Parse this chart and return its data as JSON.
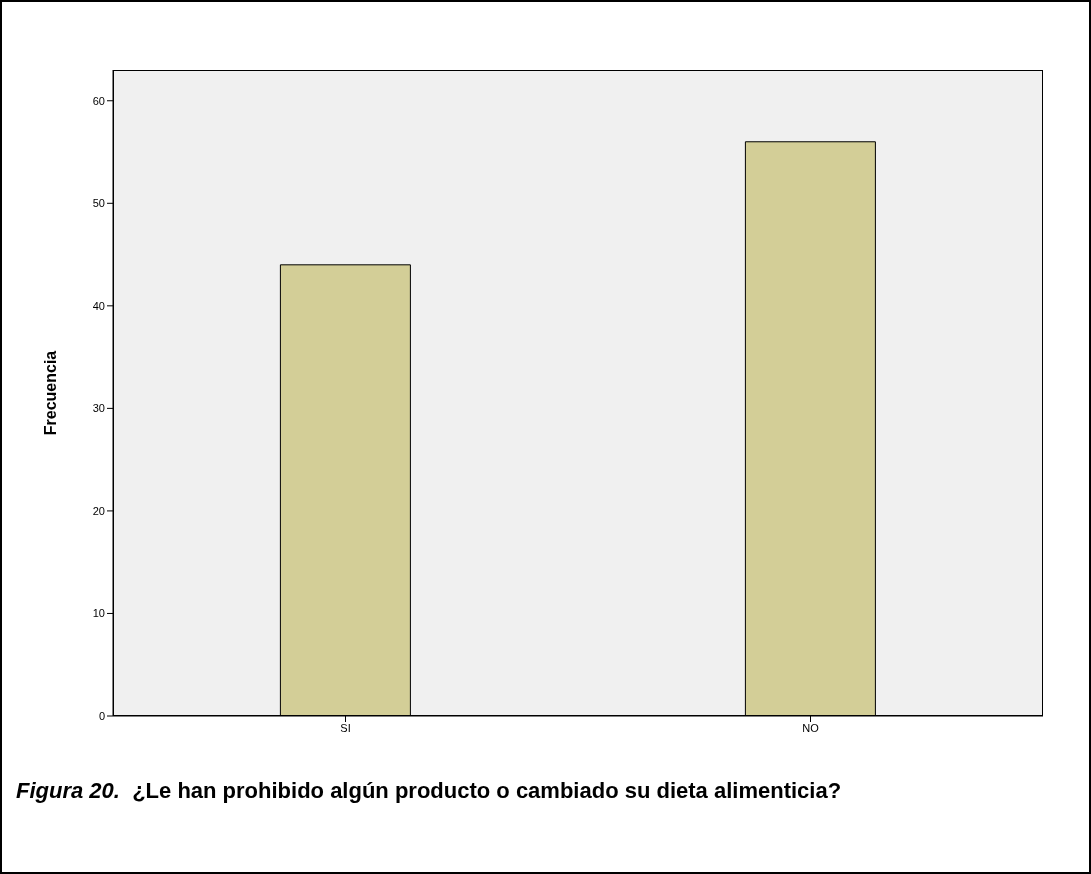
{
  "chart_data": {
    "type": "bar",
    "title": "Figura 20.",
    "subtitle": "¿Le han prohibido algún producto o cambiado su dieta alimenticia?",
    "ylabel": "Frecuencia",
    "categories": [
      "SI",
      "NO"
    ],
    "values": [
      44,
      56
    ],
    "color": "#d3ce97",
    "ylim": [
      0,
      63
    ],
    "yticks": [
      0,
      10,
      20,
      30,
      40,
      50,
      60
    ]
  }
}
